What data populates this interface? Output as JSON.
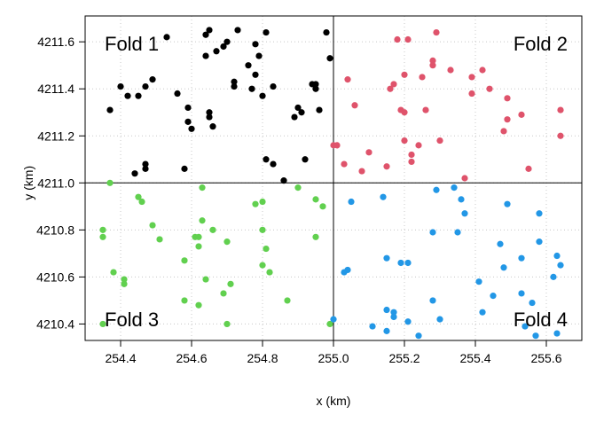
{
  "chart_data": {
    "type": "scatter",
    "title": "",
    "xlabel": "x (km)",
    "ylabel": "y (km)",
    "xlim": [
      254.3,
      255.7
    ],
    "ylim": [
      4210.33,
      4211.71
    ],
    "xticks": [
      254.4,
      254.6,
      254.8,
      255.0,
      255.2,
      255.4,
      255.6
    ],
    "yticks": [
      4210.4,
      4210.6,
      4210.8,
      4211.0,
      4211.2,
      4211.4,
      4211.6
    ],
    "grid": true,
    "divider_lines": {
      "x": 255.0,
      "y": 4211.0
    },
    "series": [
      {
        "name": "Fold 1",
        "color": "#000000",
        "label_position": "top-left",
        "points": [
          [
            254.37,
            4211.31
          ],
          [
            254.4,
            4211.41
          ],
          [
            254.42,
            4211.37
          ],
          [
            254.45,
            4211.37
          ],
          [
            254.47,
            4211.41
          ],
          [
            254.49,
            4211.44
          ],
          [
            254.53,
            4211.62
          ],
          [
            254.59,
            4211.32
          ],
          [
            254.59,
            4211.26
          ],
          [
            254.6,
            4211.23
          ],
          [
            254.64,
            4211.54
          ],
          [
            254.64,
            4211.63
          ],
          [
            254.65,
            4211.65
          ],
          [
            254.65,
            4211.28
          ],
          [
            254.65,
            4211.3
          ],
          [
            254.66,
            4211.24
          ],
          [
            254.67,
            4211.56
          ],
          [
            254.69,
            4211.58
          ],
          [
            254.7,
            4211.6
          ],
          [
            254.72,
            4211.43
          ],
          [
            254.72,
            4211.41
          ],
          [
            254.73,
            4211.65
          ],
          [
            254.76,
            4211.5
          ],
          [
            254.77,
            4211.4
          ],
          [
            254.78,
            4211.59
          ],
          [
            254.78,
            4211.46
          ],
          [
            254.79,
            4211.54
          ],
          [
            254.8,
            4211.37
          ],
          [
            254.81,
            4211.64
          ],
          [
            254.83,
            4211.41
          ],
          [
            254.89,
            4211.28
          ],
          [
            254.9,
            4211.32
          ],
          [
            254.91,
            4211.3
          ],
          [
            254.94,
            4211.42
          ],
          [
            254.95,
            4211.42
          ],
          [
            254.95,
            4211.4
          ],
          [
            254.96,
            4211.31
          ],
          [
            254.98,
            4211.64
          ],
          [
            254.99,
            4211.53
          ],
          [
            254.81,
            4211.1
          ],
          [
            254.83,
            4211.08
          ],
          [
            254.92,
            4211.1
          ],
          [
            254.86,
            4211.01
          ],
          [
            254.44,
            4211.04
          ],
          [
            254.47,
            4211.08
          ],
          [
            254.47,
            4211.06
          ],
          [
            254.58,
            4211.06
          ],
          [
            254.56,
            4211.38
          ]
        ]
      },
      {
        "name": "Fold 2",
        "color": "#DF536B",
        "label_position": "top-right",
        "points": [
          [
            255.04,
            4211.44
          ],
          [
            255.06,
            4211.33
          ],
          [
            255.03,
            4211.08
          ],
          [
            255.01,
            4211.16
          ],
          [
            255.0,
            4211.16
          ],
          [
            255.08,
            4211.05
          ],
          [
            255.1,
            4211.13
          ],
          [
            255.15,
            4211.07
          ],
          [
            255.16,
            4211.4
          ],
          [
            255.17,
            4211.42
          ],
          [
            255.18,
            4211.61
          ],
          [
            255.19,
            4211.31
          ],
          [
            255.2,
            4211.3
          ],
          [
            255.2,
            4211.46
          ],
          [
            255.21,
            4211.61
          ],
          [
            255.2,
            4211.18
          ],
          [
            255.22,
            4211.09
          ],
          [
            255.22,
            4211.12
          ],
          [
            255.24,
            4211.16
          ],
          [
            255.26,
            4211.31
          ],
          [
            255.25,
            4211.45
          ],
          [
            255.28,
            4211.52
          ],
          [
            255.29,
            4211.64
          ],
          [
            255.28,
            4211.5
          ],
          [
            255.33,
            4211.48
          ],
          [
            255.3,
            4211.18
          ],
          [
            255.39,
            4211.38
          ],
          [
            255.39,
            4211.45
          ],
          [
            255.42,
            4211.48
          ],
          [
            255.44,
            4211.4
          ],
          [
            255.37,
            4211.02
          ],
          [
            255.48,
            4211.22
          ],
          [
            255.49,
            4211.36
          ],
          [
            255.49,
            4211.27
          ],
          [
            255.53,
            4211.29
          ],
          [
            255.55,
            4211.06
          ],
          [
            255.64,
            4211.31
          ],
          [
            255.64,
            4211.2
          ]
        ]
      },
      {
        "name": "Fold 3",
        "color": "#61D04F",
        "label_position": "bottom-left",
        "points": [
          [
            254.37,
            4211.0
          ],
          [
            254.35,
            4210.8
          ],
          [
            254.35,
            4210.77
          ],
          [
            254.38,
            4210.62
          ],
          [
            254.41,
            4210.59
          ],
          [
            254.41,
            4210.57
          ],
          [
            254.45,
            4210.94
          ],
          [
            254.46,
            4210.92
          ],
          [
            254.49,
            4210.82
          ],
          [
            254.51,
            4210.76
          ],
          [
            254.58,
            4210.67
          ],
          [
            254.58,
            4210.5
          ],
          [
            254.61,
            4210.77
          ],
          [
            254.62,
            4210.77
          ],
          [
            254.62,
            4210.73
          ],
          [
            254.62,
            4210.48
          ],
          [
            254.63,
            4210.84
          ],
          [
            254.63,
            4210.98
          ],
          [
            254.64,
            4210.59
          ],
          [
            254.66,
            4210.8
          ],
          [
            254.69,
            4210.53
          ],
          [
            254.7,
            4210.75
          ],
          [
            254.7,
            4210.4
          ],
          [
            254.71,
            4210.57
          ],
          [
            254.78,
            4210.91
          ],
          [
            254.8,
            4210.92
          ],
          [
            254.8,
            4210.8
          ],
          [
            254.8,
            4210.65
          ],
          [
            254.81,
            4210.72
          ],
          [
            254.82,
            4210.62
          ],
          [
            254.87,
            4210.5
          ],
          [
            254.9,
            4210.98
          ],
          [
            254.95,
            4210.93
          ],
          [
            254.97,
            4210.9
          ],
          [
            254.95,
            4210.77
          ],
          [
            254.99,
            4210.4
          ],
          [
            254.35,
            4210.4
          ]
        ]
      },
      {
        "name": "Fold 4",
        "color": "#2297E6",
        "label_position": "bottom-right",
        "points": [
          [
            255.0,
            4210.42
          ],
          [
            255.03,
            4210.62
          ],
          [
            255.04,
            4210.63
          ],
          [
            255.05,
            4210.92
          ],
          [
            255.11,
            4210.39
          ],
          [
            255.14,
            4210.94
          ],
          [
            255.15,
            4210.68
          ],
          [
            255.15,
            4210.46
          ],
          [
            255.15,
            4210.37
          ],
          [
            255.17,
            4210.45
          ],
          [
            255.17,
            4210.43
          ],
          [
            255.19,
            4210.66
          ],
          [
            255.21,
            4210.66
          ],
          [
            255.21,
            4210.41
          ],
          [
            255.24,
            4210.35
          ],
          [
            255.28,
            4210.79
          ],
          [
            255.28,
            4210.5
          ],
          [
            255.29,
            4210.97
          ],
          [
            255.3,
            4210.42
          ],
          [
            255.34,
            4210.98
          ],
          [
            255.35,
            4210.79
          ],
          [
            255.36,
            4210.93
          ],
          [
            255.37,
            4210.87
          ],
          [
            255.41,
            4210.58
          ],
          [
            255.42,
            4210.45
          ],
          [
            255.45,
            4210.52
          ],
          [
            255.47,
            4210.74
          ],
          [
            255.48,
            4210.64
          ],
          [
            255.49,
            4210.91
          ],
          [
            255.53,
            4210.68
          ],
          [
            255.53,
            4210.53
          ],
          [
            255.54,
            4210.39
          ],
          [
            255.56,
            4210.49
          ],
          [
            255.57,
            4210.35
          ],
          [
            255.58,
            4210.87
          ],
          [
            255.58,
            4210.75
          ],
          [
            255.62,
            4210.6
          ],
          [
            255.63,
            4210.36
          ],
          [
            255.63,
            4210.69
          ],
          [
            255.64,
            4210.65
          ]
        ]
      }
    ]
  }
}
